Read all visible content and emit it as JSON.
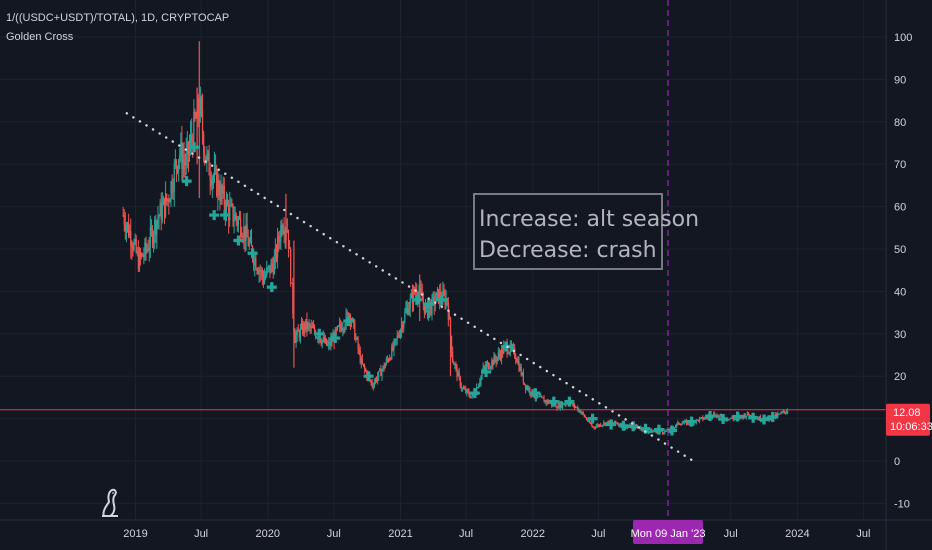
{
  "header": {
    "symbol": "1/((USDC+USDT)/TOTAL), 1D, CRYPTOCAP",
    "indicator": "Golden Cross"
  },
  "annotation": {
    "line1": "Increase: alt season",
    "line2": "Decrease: crash"
  },
  "price_label": {
    "value": "12.08",
    "countdown": "10:06:33"
  },
  "crosshair_label": "Mon 09 Jan '23",
  "colors": {
    "background": "#131722",
    "up": "#26a69a",
    "down": "#ef5350",
    "price_line": "#f23645",
    "crosshair": "#9c27b0",
    "trendline": "#d1d4dc",
    "annotation_border": "#787b86"
  },
  "chart_data": {
    "type": "candlestick",
    "title": "1/((USDC+USDT)/TOTAL), 1D, CRYPTOCAP",
    "y_ticks": [
      100,
      90,
      80,
      70,
      60,
      50,
      40,
      30,
      20,
      10,
      0,
      -10
    ],
    "x_ticks": [
      "2019",
      "Jul",
      "2020",
      "Jul",
      "2021",
      "Jul",
      "2022",
      "Jul",
      "Jul",
      "2024",
      "Jul"
    ],
    "ylim": [
      -13,
      106
    ],
    "last_value": 12.08,
    "price_trend": [
      [
        "2018-11-28",
        58
      ],
      [
        "2018-12-20",
        53
      ],
      [
        "2019-01-10",
        47
      ],
      [
        "2019-02-01",
        50
      ],
      [
        "2019-03-01",
        57
      ],
      [
        "2019-04-01",
        62
      ],
      [
        "2019-05-01",
        73
      ],
      [
        "2019-05-20",
        70
      ],
      [
        "2019-06-26",
        84
      ],
      [
        "2019-07-15",
        71
      ],
      [
        "2019-08-15",
        65
      ],
      [
        "2019-09-15",
        59
      ],
      [
        "2019-10-20",
        56
      ],
      [
        "2019-11-20",
        49
      ],
      [
        "2019-12-20",
        43
      ],
      [
        "2020-01-20",
        47
      ],
      [
        "2020-02-10",
        57
      ],
      [
        "2020-02-25",
        55
      ],
      [
        "2020-03-15",
        29
      ],
      [
        "2020-04-15",
        32
      ],
      [
        "2020-05-15",
        30
      ],
      [
        "2020-06-15",
        27
      ],
      [
        "2020-07-15",
        31
      ],
      [
        "2020-08-15",
        35
      ],
      [
        "2020-09-15",
        23
      ],
      [
        "2020-10-15",
        18
      ],
      [
        "2020-11-15",
        22
      ],
      [
        "2020-12-15",
        27
      ],
      [
        "2021-01-15",
        35
      ],
      [
        "2021-02-15",
        41
      ],
      [
        "2021-03-15",
        35
      ],
      [
        "2021-04-15",
        39
      ],
      [
        "2021-05-10",
        38
      ],
      [
        "2021-05-25",
        24
      ],
      [
        "2021-06-20",
        17
      ],
      [
        "2021-07-20",
        15
      ],
      [
        "2021-08-20",
        22
      ],
      [
        "2021-09-20",
        24
      ],
      [
        "2021-10-20",
        27
      ],
      [
        "2021-11-15",
        25
      ],
      [
        "2021-12-10",
        18
      ],
      [
        "2022-01-10",
        15
      ],
      [
        "2022-02-10",
        14
      ],
      [
        "2022-03-10",
        13
      ],
      [
        "2022-04-10",
        14
      ],
      [
        "2022-05-10",
        12
      ],
      [
        "2022-06-15",
        8
      ],
      [
        "2022-07-20",
        9
      ],
      [
        "2022-08-20",
        9
      ],
      [
        "2022-09-20",
        8
      ],
      [
        "2022-10-20",
        8
      ],
      [
        "2022-11-20",
        7
      ],
      [
        "2022-12-20",
        7
      ],
      [
        "2023-01-09",
        7
      ],
      [
        "2023-02-09",
        9
      ],
      [
        "2023-03-09",
        9
      ],
      [
        "2023-04-15",
        10
      ],
      [
        "2023-05-15",
        11
      ],
      [
        "2023-06-15",
        10
      ],
      [
        "2023-07-15",
        10
      ],
      [
        "2023-08-15",
        11
      ],
      [
        "2023-09-15",
        10
      ],
      [
        "2023-10-15",
        10
      ],
      [
        "2023-11-15",
        11
      ],
      [
        "2023-12-05",
        12.08
      ]
    ],
    "wick_spikes": [
      [
        "2019-06-26",
        99,
        62
      ],
      [
        "2019-06-20",
        88,
        70
      ],
      [
        "2020-02-20",
        63,
        50
      ],
      [
        "2020-03-13",
        52,
        22
      ],
      [
        "2021-05-19",
        34,
        20
      ],
      [
        "2021-02-23",
        44,
        33
      ]
    ],
    "trendline": {
      "start": [
        "2018-12-08",
        82
      ],
      "end": [
        "2023-03-20",
        0
      ]
    },
    "crosshair_date": "2023-01-09",
    "golden_cross_markers": [
      [
        "2019-05-22",
        66
      ],
      [
        "2019-06-12",
        74
      ],
      [
        "2019-08-06",
        58
      ],
      [
        "2019-09-05",
        58
      ],
      [
        "2019-10-12",
        52
      ],
      [
        "2019-11-20",
        49
      ],
      [
        "2020-01-12",
        41
      ],
      [
        "2020-05-22",
        30
      ],
      [
        "2020-07-05",
        29
      ],
      [
        "2020-08-10",
        33
      ],
      [
        "2020-10-05",
        20
      ],
      [
        "2021-02-15",
        38
      ],
      [
        "2021-03-20",
        37
      ],
      [
        "2021-04-25",
        38
      ],
      [
        "2021-07-25",
        16
      ],
      [
        "2021-08-25",
        21
      ],
      [
        "2021-10-20",
        27
      ],
      [
        "2022-01-08",
        16
      ],
      [
        "2022-02-28",
        14
      ],
      [
        "2022-04-12",
        14
      ],
      [
        "2022-06-15",
        10
      ],
      [
        "2022-08-05",
        8.6
      ],
      [
        "2022-09-08",
        8.3
      ],
      [
        "2022-10-05",
        8.2
      ],
      [
        "2022-11-08",
        7.6
      ],
      [
        "2022-12-15",
        7.4
      ],
      [
        "2023-01-20",
        7.2
      ],
      [
        "2023-03-15",
        9.3
      ],
      [
        "2023-05-05",
        10.6
      ],
      [
        "2023-06-10",
        9.9
      ],
      [
        "2023-07-20",
        10.5
      ],
      [
        "2023-09-01",
        10.2
      ],
      [
        "2023-10-01",
        9.8
      ],
      [
        "2023-10-25",
        10.4
      ]
    ]
  }
}
